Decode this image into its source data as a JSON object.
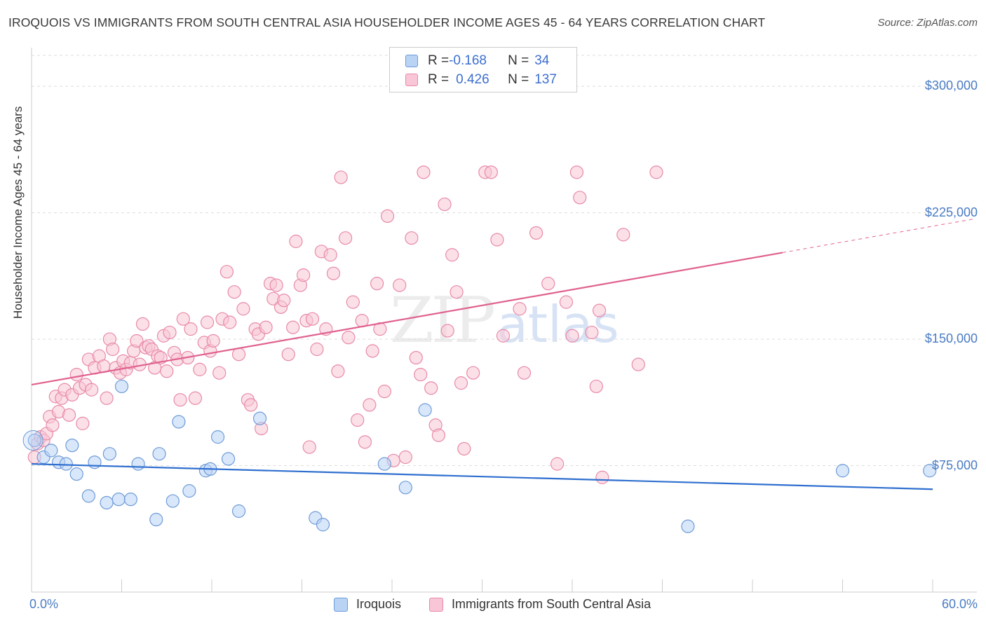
{
  "header": {
    "title": "IROQUOIS VS IMMIGRANTS FROM SOUTH CENTRAL ASIA HOUSEHOLDER INCOME AGES 45 - 64 YEARS CORRELATION CHART",
    "source": "Source: ZipAtlas.com"
  },
  "watermark": {
    "zip": "ZIP",
    "atlas": "atlas"
  },
  "legend": {
    "rows": [
      {
        "r_label": "R = ",
        "r_value": "-0.168",
        "n_label": "N = ",
        "n_value": "34"
      },
      {
        "r_label": "R = ",
        "r_value": "0.426",
        "n_label": "N = ",
        "n_value": "137"
      }
    ]
  },
  "colors": {
    "iroquois_fill": "#b9d3f5",
    "iroquois_stroke": "#6e9bd8",
    "iroquois_line": "#2f6fcf",
    "immigrants_fill": "#f8c6d6",
    "immigrants_stroke": "#e88aa8",
    "immigrants_line": "#e0618f",
    "grid": "#dddddd",
    "tick_text": "#4a7cc4"
  },
  "chart_data": {
    "type": "scatter",
    "title": "IROQUOIS VS IMMIGRANTS FROM SOUTH CENTRAL ASIA HOUSEHOLDER INCOME AGES 45 - 64 YEARS CORRELATION CHART",
    "xlabel": "",
    "ylabel": "Householder Income Ages 45 - 64 years",
    "xlim": [
      0,
      60
    ],
    "ylim": [
      0,
      320000
    ],
    "x_tick_labels": [
      "0.0%",
      "60.0%"
    ],
    "y_ticks": [
      75000,
      150000,
      225000,
      300000
    ],
    "y_tick_labels": [
      "$75,000",
      "$150,000",
      "$225,000",
      "$300,000"
    ],
    "grid": true,
    "legend_placement": "top-center",
    "series": [
      {
        "name": "Iroquois",
        "R": -0.168,
        "N": 34,
        "trend": {
          "x": [
            0,
            60
          ],
          "y": [
            76000,
            61000
          ],
          "dashed_from": null
        },
        "points": [
          [
            0.2,
            90000
          ],
          [
            0.8,
            80000
          ],
          [
            1.3,
            84000
          ],
          [
            1.8,
            77000
          ],
          [
            2.3,
            76000
          ],
          [
            2.7,
            87000
          ],
          [
            3.0,
            70000
          ],
          [
            3.8,
            57000
          ],
          [
            4.2,
            77000
          ],
          [
            5.0,
            53000
          ],
          [
            5.2,
            82000
          ],
          [
            5.8,
            55000
          ],
          [
            6.0,
            122000
          ],
          [
            6.6,
            55000
          ],
          [
            7.1,
            76000
          ],
          [
            8.3,
            43000
          ],
          [
            8.5,
            82000
          ],
          [
            9.4,
            54000
          ],
          [
            9.8,
            101000
          ],
          [
            10.5,
            60000
          ],
          [
            11.6,
            72000
          ],
          [
            11.9,
            73000
          ],
          [
            12.4,
            92000
          ],
          [
            13.1,
            79000
          ],
          [
            13.8,
            48000
          ],
          [
            15.2,
            103000
          ],
          [
            18.9,
            44000
          ],
          [
            19.4,
            40000
          ],
          [
            23.5,
            76000
          ],
          [
            24.9,
            62000
          ],
          [
            26.2,
            108000
          ],
          [
            43.7,
            39000
          ],
          [
            54.0,
            72000
          ],
          [
            59.8,
            72000
          ]
        ]
      },
      {
        "name": "Immigrants from South Central Asia",
        "R": 0.426,
        "N": 137,
        "trend": {
          "x": [
            0,
            60
          ],
          "y": [
            123000,
            217000
          ],
          "dashed_from": 50
        },
        "points": [
          [
            0.2,
            80000
          ],
          [
            0.4,
            88000
          ],
          [
            0.6,
            92000
          ],
          [
            0.8,
            90000
          ],
          [
            1.0,
            94000
          ],
          [
            1.2,
            104000
          ],
          [
            1.4,
            99000
          ],
          [
            1.6,
            116000
          ],
          [
            1.8,
            107000
          ],
          [
            2.0,
            115000
          ],
          [
            2.2,
            120000
          ],
          [
            2.5,
            105000
          ],
          [
            2.7,
            117000
          ],
          [
            3.0,
            129000
          ],
          [
            3.2,
            121000
          ],
          [
            3.4,
            100000
          ],
          [
            3.6,
            123000
          ],
          [
            3.8,
            138000
          ],
          [
            4.0,
            120000
          ],
          [
            4.2,
            133000
          ],
          [
            4.5,
            140000
          ],
          [
            4.8,
            134000
          ],
          [
            5.0,
            115000
          ],
          [
            5.2,
            150000
          ],
          [
            5.4,
            144000
          ],
          [
            5.6,
            133000
          ],
          [
            5.9,
            130000
          ],
          [
            6.1,
            137000
          ],
          [
            6.3,
            132000
          ],
          [
            6.6,
            136000
          ],
          [
            6.8,
            143000
          ],
          [
            7.0,
            149000
          ],
          [
            7.2,
            135000
          ],
          [
            7.4,
            159000
          ],
          [
            7.6,
            145000
          ],
          [
            7.8,
            146000
          ],
          [
            8.0,
            144000
          ],
          [
            8.2,
            133000
          ],
          [
            8.4,
            140000
          ],
          [
            8.6,
            139000
          ],
          [
            8.8,
            152000
          ],
          [
            9.0,
            131000
          ],
          [
            9.2,
            154000
          ],
          [
            9.5,
            142000
          ],
          [
            9.7,
            138000
          ],
          [
            9.9,
            114000
          ],
          [
            10.1,
            162000
          ],
          [
            10.4,
            139000
          ],
          [
            10.6,
            156000
          ],
          [
            10.9,
            115000
          ],
          [
            11.2,
            132000
          ],
          [
            11.5,
            148000
          ],
          [
            11.7,
            160000
          ],
          [
            11.9,
            143000
          ],
          [
            12.1,
            149000
          ],
          [
            12.5,
            130000
          ],
          [
            12.7,
            162000
          ],
          [
            13.0,
            190000
          ],
          [
            13.2,
            160000
          ],
          [
            13.5,
            178000
          ],
          [
            13.8,
            141000
          ],
          [
            14.1,
            168000
          ],
          [
            14.4,
            114000
          ],
          [
            14.6,
            111000
          ],
          [
            14.9,
            156000
          ],
          [
            15.1,
            153000
          ],
          [
            15.3,
            97000
          ],
          [
            15.6,
            157000
          ],
          [
            15.9,
            183000
          ],
          [
            16.1,
            174000
          ],
          [
            16.3,
            182000
          ],
          [
            16.6,
            169000
          ],
          [
            16.8,
            173000
          ],
          [
            17.1,
            141000
          ],
          [
            17.4,
            157000
          ],
          [
            17.6,
            208000
          ],
          [
            17.9,
            182000
          ],
          [
            18.1,
            188000
          ],
          [
            18.3,
            161000
          ],
          [
            18.5,
            86000
          ],
          [
            18.7,
            162000
          ],
          [
            19.0,
            144000
          ],
          [
            19.3,
            202000
          ],
          [
            19.6,
            156000
          ],
          [
            19.9,
            200000
          ],
          [
            20.1,
            189000
          ],
          [
            20.4,
            131000
          ],
          [
            20.6,
            246000
          ],
          [
            20.9,
            210000
          ],
          [
            21.1,
            151000
          ],
          [
            21.4,
            172000
          ],
          [
            21.7,
            102000
          ],
          [
            22.0,
            161000
          ],
          [
            22.2,
            89000
          ],
          [
            22.5,
            111000
          ],
          [
            22.7,
            143000
          ],
          [
            23.0,
            183000
          ],
          [
            23.2,
            156000
          ],
          [
            23.5,
            119000
          ],
          [
            23.7,
            223000
          ],
          [
            24.1,
            78000
          ],
          [
            24.5,
            182000
          ],
          [
            24.9,
            80000
          ],
          [
            25.3,
            210000
          ],
          [
            25.6,
            139000
          ],
          [
            25.9,
            129000
          ],
          [
            26.1,
            249000
          ],
          [
            26.6,
            121000
          ],
          [
            26.9,
            99000
          ],
          [
            27.1,
            93000
          ],
          [
            27.5,
            230000
          ],
          [
            27.7,
            155000
          ],
          [
            28.0,
            200000
          ],
          [
            28.3,
            178000
          ],
          [
            28.6,
            124000
          ],
          [
            28.8,
            85000
          ],
          [
            29.4,
            130000
          ],
          [
            30.2,
            249000
          ],
          [
            30.6,
            249000
          ],
          [
            31.0,
            209000
          ],
          [
            31.4,
            152000
          ],
          [
            32.5,
            168000
          ],
          [
            32.8,
            130000
          ],
          [
            33.6,
            213000
          ],
          [
            34.4,
            183000
          ],
          [
            35.0,
            76000
          ],
          [
            35.6,
            172000
          ],
          [
            36.0,
            152000
          ],
          [
            36.3,
            249000
          ],
          [
            36.5,
            234000
          ],
          [
            37.3,
            154000
          ],
          [
            37.6,
            122000
          ],
          [
            37.8,
            167000
          ],
          [
            38.0,
            68000
          ],
          [
            39.4,
            212000
          ],
          [
            40.4,
            135000
          ],
          [
            41.6,
            249000
          ]
        ]
      }
    ]
  }
}
